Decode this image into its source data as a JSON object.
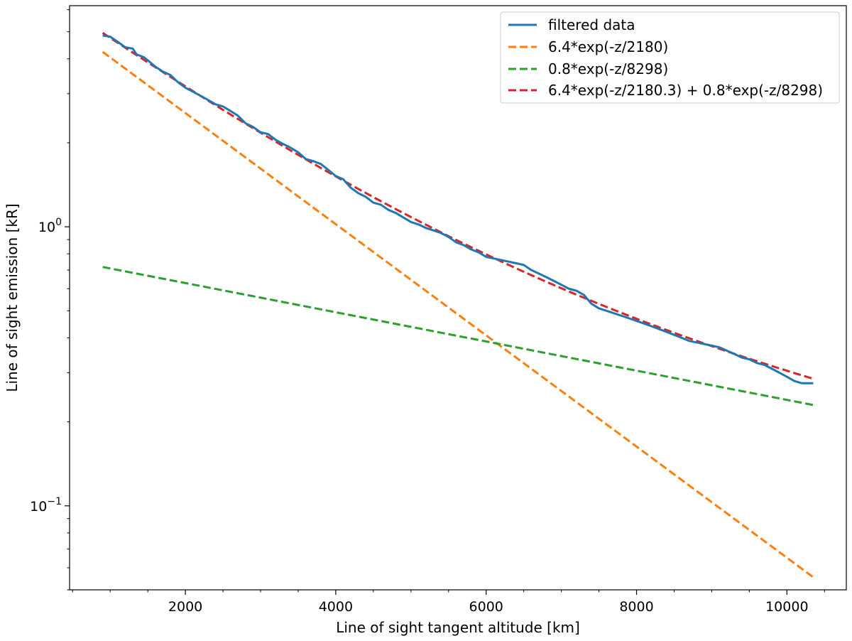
{
  "chart_data": {
    "type": "line",
    "title": "",
    "xlabel": "Line of sight tangent altitude [km]",
    "ylabel": "Line of sight emission [kR]",
    "xlim": [
      460,
      10790
    ],
    "ylim": [
      0.05,
      6.2
    ],
    "yscale": "log",
    "grid": false,
    "legend_position": "top-right",
    "x_ticks": [
      {
        "value": 2000,
        "label": "2000"
      },
      {
        "value": 4000,
        "label": "4000"
      },
      {
        "value": 6000,
        "label": "6000"
      },
      {
        "value": 8000,
        "label": "8000"
      },
      {
        "value": 10000,
        "label": "10000"
      }
    ],
    "x_minor_tick_step": 500,
    "y_ticks": [
      {
        "value": 1,
        "base": "10",
        "exponent": "0"
      },
      {
        "value": 0.1,
        "base": "10",
        "exponent": "−1"
      }
    ],
    "series": [
      {
        "name": "filtered data",
        "color": "#1f77b4",
        "dash": "solid",
        "points": [
          [
            900,
            4.85
          ],
          [
            1000,
            4.8
          ],
          [
            1100,
            4.6
          ],
          [
            1200,
            4.4
          ],
          [
            1300,
            4.35
          ],
          [
            1350,
            4.15
          ],
          [
            1450,
            4.05
          ],
          [
            1500,
            3.95
          ],
          [
            1600,
            3.75
          ],
          [
            1700,
            3.6
          ],
          [
            1800,
            3.5
          ],
          [
            1900,
            3.3
          ],
          [
            2000,
            3.15
          ],
          [
            2100,
            3.05
          ],
          [
            2200,
            2.95
          ],
          [
            2300,
            2.85
          ],
          [
            2400,
            2.75
          ],
          [
            2500,
            2.7
          ],
          [
            2600,
            2.6
          ],
          [
            2700,
            2.5
          ],
          [
            2800,
            2.35
          ],
          [
            2900,
            2.28
          ],
          [
            3000,
            2.18
          ],
          [
            3100,
            2.15
          ],
          [
            3200,
            2.05
          ],
          [
            3300,
            1.98
          ],
          [
            3400,
            1.92
          ],
          [
            3500,
            1.85
          ],
          [
            3600,
            1.75
          ],
          [
            3700,
            1.72
          ],
          [
            3800,
            1.68
          ],
          [
            3900,
            1.6
          ],
          [
            4000,
            1.52
          ],
          [
            4100,
            1.48
          ],
          [
            4200,
            1.38
          ],
          [
            4300,
            1.32
          ],
          [
            4400,
            1.28
          ],
          [
            4500,
            1.22
          ],
          [
            4600,
            1.2
          ],
          [
            4700,
            1.15
          ],
          [
            4800,
            1.12
          ],
          [
            4900,
            1.08
          ],
          [
            5000,
            1.04
          ],
          [
            5100,
            1.02
          ],
          [
            5200,
            0.99
          ],
          [
            5300,
            0.97
          ],
          [
            5400,
            0.95
          ],
          [
            5500,
            0.92
          ],
          [
            5600,
            0.88
          ],
          [
            5700,
            0.86
          ],
          [
            5800,
            0.83
          ],
          [
            5900,
            0.81
          ],
          [
            6000,
            0.78
          ],
          [
            6100,
            0.77
          ],
          [
            6200,
            0.76
          ],
          [
            6300,
            0.75
          ],
          [
            6400,
            0.74
          ],
          [
            6500,
            0.73
          ],
          [
            6600,
            0.7
          ],
          [
            6700,
            0.68
          ],
          [
            6800,
            0.66
          ],
          [
            6900,
            0.64
          ],
          [
            7000,
            0.62
          ],
          [
            7100,
            0.6
          ],
          [
            7200,
            0.59
          ],
          [
            7300,
            0.57
          ],
          [
            7400,
            0.53
          ],
          [
            7500,
            0.51
          ],
          [
            7600,
            0.5
          ],
          [
            7700,
            0.49
          ],
          [
            7800,
            0.48
          ],
          [
            7900,
            0.47
          ],
          [
            8000,
            0.46
          ],
          [
            8100,
            0.45
          ],
          [
            8200,
            0.44
          ],
          [
            8300,
            0.43
          ],
          [
            8400,
            0.42
          ],
          [
            8500,
            0.41
          ],
          [
            8600,
            0.4
          ],
          [
            8700,
            0.39
          ],
          [
            8800,
            0.385
          ],
          [
            8900,
            0.38
          ],
          [
            9000,
            0.375
          ],
          [
            9100,
            0.37
          ],
          [
            9200,
            0.36
          ],
          [
            9300,
            0.35
          ],
          [
            9400,
            0.34
          ],
          [
            9500,
            0.335
          ],
          [
            9600,
            0.325
          ],
          [
            9700,
            0.32
          ],
          [
            9800,
            0.31
          ],
          [
            9900,
            0.3
          ],
          [
            10000,
            0.29
          ],
          [
            10100,
            0.28
          ],
          [
            10200,
            0.275
          ],
          [
            10350,
            0.275
          ]
        ]
      },
      {
        "name": "6.4*exp(-z/2180)",
        "color": "#ff7f0e",
        "dash": "dashed",
        "formula": {
          "terms": [
            {
              "a": 6.4,
              "scale": 2180
            }
          ]
        },
        "x_range": [
          900,
          10350
        ]
      },
      {
        "name": "0.8*exp(-z/8298)",
        "color": "#2ca02c",
        "dash": "dashed",
        "formula": {
          "terms": [
            {
              "a": 0.8,
              "scale": 8298
            }
          ]
        },
        "x_range": [
          900,
          10350
        ]
      },
      {
        "name": "6.4*exp(-z/2180.3) + 0.8*exp(-z/8298)",
        "color": "#d62728",
        "dash": "dashed",
        "formula": {
          "terms": [
            {
              "a": 6.4,
              "scale": 2180.3
            },
            {
              "a": 0.8,
              "scale": 8298
            }
          ]
        },
        "x_range": [
          900,
          10350
        ]
      }
    ]
  }
}
